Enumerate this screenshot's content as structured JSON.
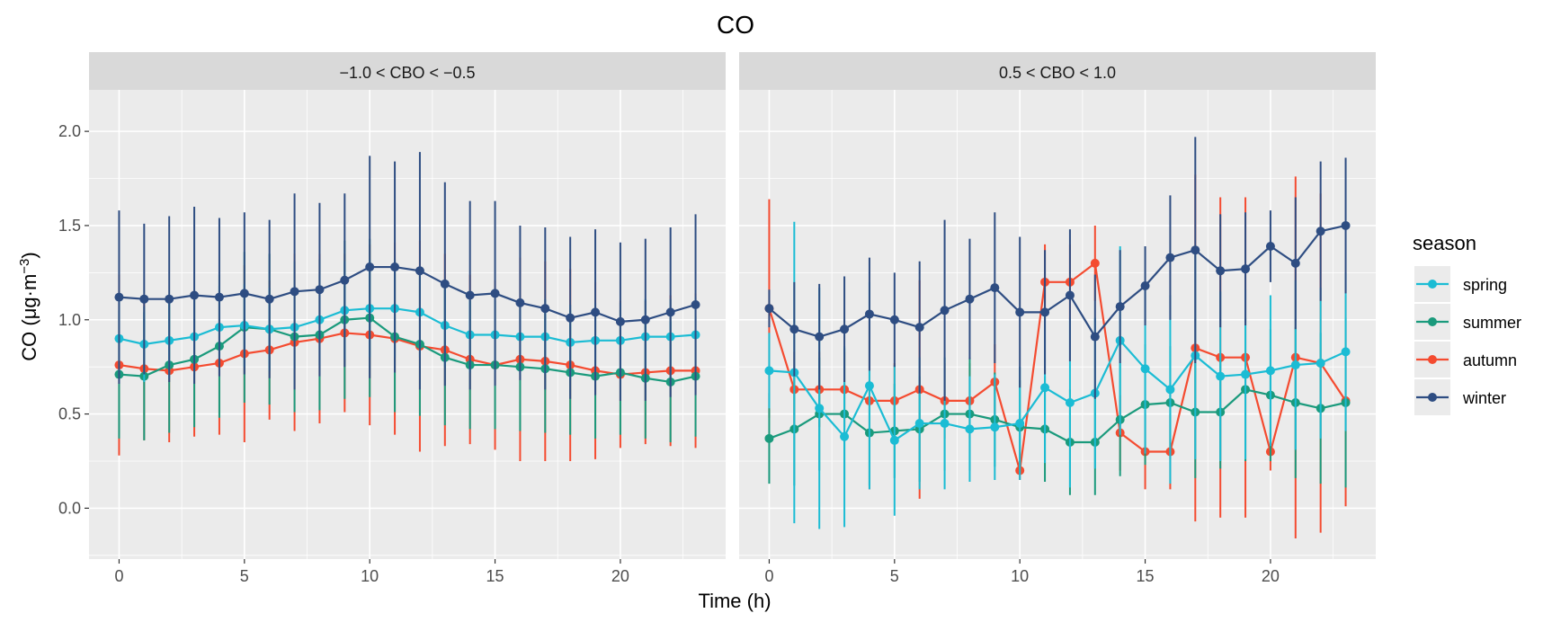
{
  "chart_data": {
    "type": "line",
    "title": "CO",
    "xlabel": "Time (h)",
    "ylabel_main": "CO (μg·m",
    "ylabel_sup": "−3",
    "ylabel_close": ")",
    "xlim": [
      -1.2,
      24.2
    ],
    "ylim": [
      -0.27,
      2.22
    ],
    "x_ticks": [
      "0",
      "5",
      "10",
      "15",
      "20"
    ],
    "y_ticks": [
      "0.0",
      "0.5",
      "1.0",
      "1.5",
      "2.0"
    ],
    "legend": {
      "title": "season",
      "position": "right"
    },
    "colors": {
      "spring": "#1bbcd4",
      "summer": "#1a9a7c",
      "autumn": "#f44b30",
      "winter": "#2e4d82"
    },
    "facets": [
      {
        "label": "−1.0 < CBO < −0.5",
        "series": [
          {
            "name": "spring",
            "values": [
              0.9,
              0.87,
              0.89,
              0.91,
              0.96,
              0.97,
              0.95,
              0.96,
              1.0,
              1.05,
              1.06,
              1.06,
              1.04,
              0.97,
              0.92,
              0.92,
              0.91,
              0.91,
              0.88,
              0.89,
              0.89,
              0.91,
              0.91,
              0.92
            ],
            "sd": [
              0.2,
              0.2,
              0.2,
              0.2,
              0.22,
              0.22,
              0.22,
              0.22,
              0.24,
              0.26,
              0.26,
              0.26,
              0.24,
              0.22,
              0.2,
              0.2,
              0.2,
              0.2,
              0.2,
              0.2,
              0.2,
              0.2,
              0.2,
              0.2
            ]
          },
          {
            "name": "summer",
            "values": [
              0.71,
              0.7,
              0.76,
              0.79,
              0.86,
              0.96,
              0.95,
              0.91,
              0.92,
              1.0,
              1.01,
              0.91,
              0.87,
              0.8,
              0.76,
              0.76,
              0.75,
              0.74,
              0.72,
              0.7,
              0.72,
              0.69,
              0.67,
              0.7
            ],
            "sd": [
              0.34,
              0.34,
              0.36,
              0.36,
              0.38,
              0.4,
              0.4,
              0.4,
              0.4,
              0.42,
              0.42,
              0.4,
              0.38,
              0.36,
              0.34,
              0.34,
              0.34,
              0.34,
              0.33,
              0.33,
              0.33,
              0.32,
              0.32,
              0.32
            ]
          },
          {
            "name": "autumn",
            "values": [
              0.76,
              0.74,
              0.73,
              0.75,
              0.77,
              0.82,
              0.84,
              0.88,
              0.9,
              0.93,
              0.92,
              0.9,
              0.86,
              0.84,
              0.79,
              0.76,
              0.79,
              0.78,
              0.76,
              0.73,
              0.71,
              0.72,
              0.73,
              0.73
            ],
            "sd": [
              0.48,
              0.38,
              0.38,
              0.37,
              0.38,
              0.47,
              0.37,
              0.47,
              0.45,
              0.42,
              0.48,
              0.51,
              0.56,
              0.51,
              0.45,
              0.45,
              0.54,
              0.53,
              0.51,
              0.47,
              0.39,
              0.38,
              0.4,
              0.41
            ]
          },
          {
            "name": "winter",
            "values": [
              1.12,
              1.11,
              1.11,
              1.13,
              1.12,
              1.14,
              1.11,
              1.15,
              1.16,
              1.21,
              1.28,
              1.28,
              1.26,
              1.19,
              1.13,
              1.14,
              1.09,
              1.06,
              1.01,
              1.04,
              0.99,
              1.0,
              1.04,
              1.08
            ],
            "sd": [
              0.46,
              0.4,
              0.44,
              0.47,
              0.42,
              0.43,
              0.42,
              0.52,
              0.46,
              0.46,
              0.59,
              0.56,
              0.63,
              0.54,
              0.5,
              0.49,
              0.41,
              0.43,
              0.43,
              0.44,
              0.42,
              0.43,
              0.45,
              0.48
            ]
          }
        ]
      },
      {
        "label": "0.5 < CBO < 1.0",
        "series": [
          {
            "name": "spring",
            "values": [
              0.73,
              0.72,
              0.53,
              0.38,
              0.65,
              0.36,
              0.45,
              0.45,
              0.42,
              0.43,
              0.45,
              0.64,
              0.56,
              0.61,
              0.89,
              0.74,
              0.63,
              0.81,
              0.7,
              0.71,
              0.73,
              0.76,
              0.77,
              0.83
            ],
            "sd": [
              0.2,
              0.8,
              0.64,
              0.48,
              0.55,
              0.4,
              0.35,
              0.35,
              0.28,
              0.28,
              0.3,
              0.4,
              0.45,
              0.4,
              0.5,
              0.45,
              0.5,
              0.55,
              0.45,
              0.45,
              0.4,
              0.45,
              0.4,
              0.42
            ]
          },
          {
            "name": "summer",
            "values": [
              0.37,
              0.42,
              0.5,
              0.5,
              0.4,
              0.41,
              0.42,
              0.5,
              0.5,
              0.47,
              0.43,
              0.42,
              0.35,
              0.35,
              0.47,
              0.55,
              0.56,
              0.51,
              0.51,
              0.63,
              0.6,
              0.56,
              0.53,
              0.56
            ],
            "sd": [
              0.24,
              0.3,
              0.3,
              0.35,
              0.28,
              0.25,
              0.28,
              0.3,
              0.3,
              0.25,
              0.25,
              0.28,
              0.28,
              0.28,
              0.3,
              0.32,
              0.3,
              0.35,
              0.3,
              0.38,
              0.35,
              0.4,
              0.4,
              0.45
            ]
          },
          {
            "name": "autumn",
            "values": [
              1.06,
              0.63,
              0.63,
              0.63,
              0.57,
              0.57,
              0.63,
              0.57,
              0.57,
              0.67,
              0.2,
              1.2,
              1.2,
              1.3,
              0.4,
              0.3,
              0.3,
              0.85,
              0.8,
              0.8,
              0.3,
              0.8,
              0.77,
              0.57
            ],
            "sd": [
              0.58,
              0.2,
              0.2,
              0.2,
              0.47,
              0.2,
              0.58,
              0.2,
              0.2,
              0.2,
              0.05,
              0.2,
              0.2,
              0.2,
              0.2,
              0.2,
              0.2,
              0.92,
              0.85,
              0.85,
              0.1,
              0.96,
              0.9,
              0.56
            ]
          },
          {
            "name": "winter",
            "values": [
              1.06,
              0.95,
              0.91,
              0.95,
              1.03,
              1.0,
              0.96,
              1.05,
              1.11,
              1.17,
              1.04,
              1.04,
              1.13,
              0.91,
              1.07,
              1.18,
              1.33,
              1.37,
              1.26,
              1.27,
              1.39,
              1.3,
              1.47,
              1.5
            ],
            "sd": [
              0.1,
              0.25,
              0.28,
              0.28,
              0.3,
              0.25,
              0.35,
              0.48,
              0.32,
              0.4,
              0.4,
              0.33,
              0.35,
              0.33,
              0.3,
              0.21,
              0.33,
              0.6,
              0.3,
              0.3,
              0.19,
              0.35,
              0.37,
              0.36
            ]
          }
        ]
      }
    ]
  }
}
